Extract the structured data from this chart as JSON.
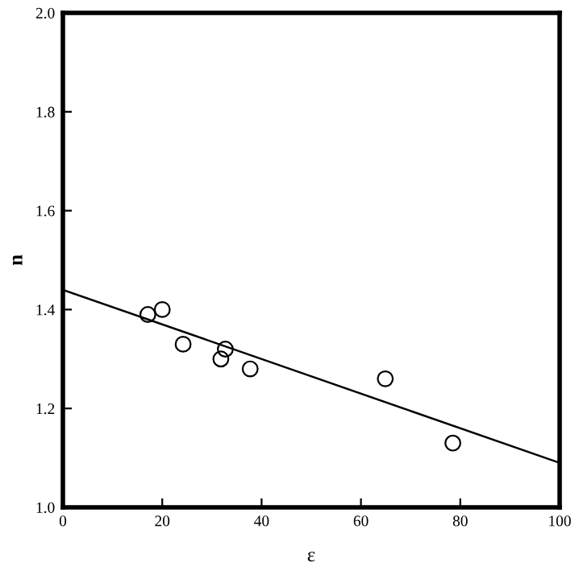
{
  "chart_data": {
    "type": "scatter",
    "xlabel": "ε",
    "ylabel": "n",
    "xlim": [
      0,
      100
    ],
    "ylim": [
      1.0,
      2.0
    ],
    "xticks": [
      0,
      20,
      40,
      60,
      80,
      100
    ],
    "yticks": [
      {
        "value": 1.0,
        "label": "1.0"
      },
      1.2,
      1.4,
      1.6,
      1.8,
      {
        "value": 2.0,
        "label": "2.0"
      }
    ],
    "grid": false,
    "marker": "circle",
    "series": [
      {
        "color": "#000000",
        "x": [
          17.1,
          20.0,
          24.2,
          31.8,
          32.7,
          37.7,
          64.9,
          78.5
        ],
        "values": [
          1.39,
          1.4,
          1.33,
          1.3,
          1.32,
          1.28,
          1.26,
          1.13
        ]
      },
      {
        "type": "line",
        "color": "#000000",
        "x": [
          0,
          100
        ],
        "values": [
          1.44,
          1.09
        ],
        "line_style": "solid",
        "marker": "none"
      }
    ]
  }
}
